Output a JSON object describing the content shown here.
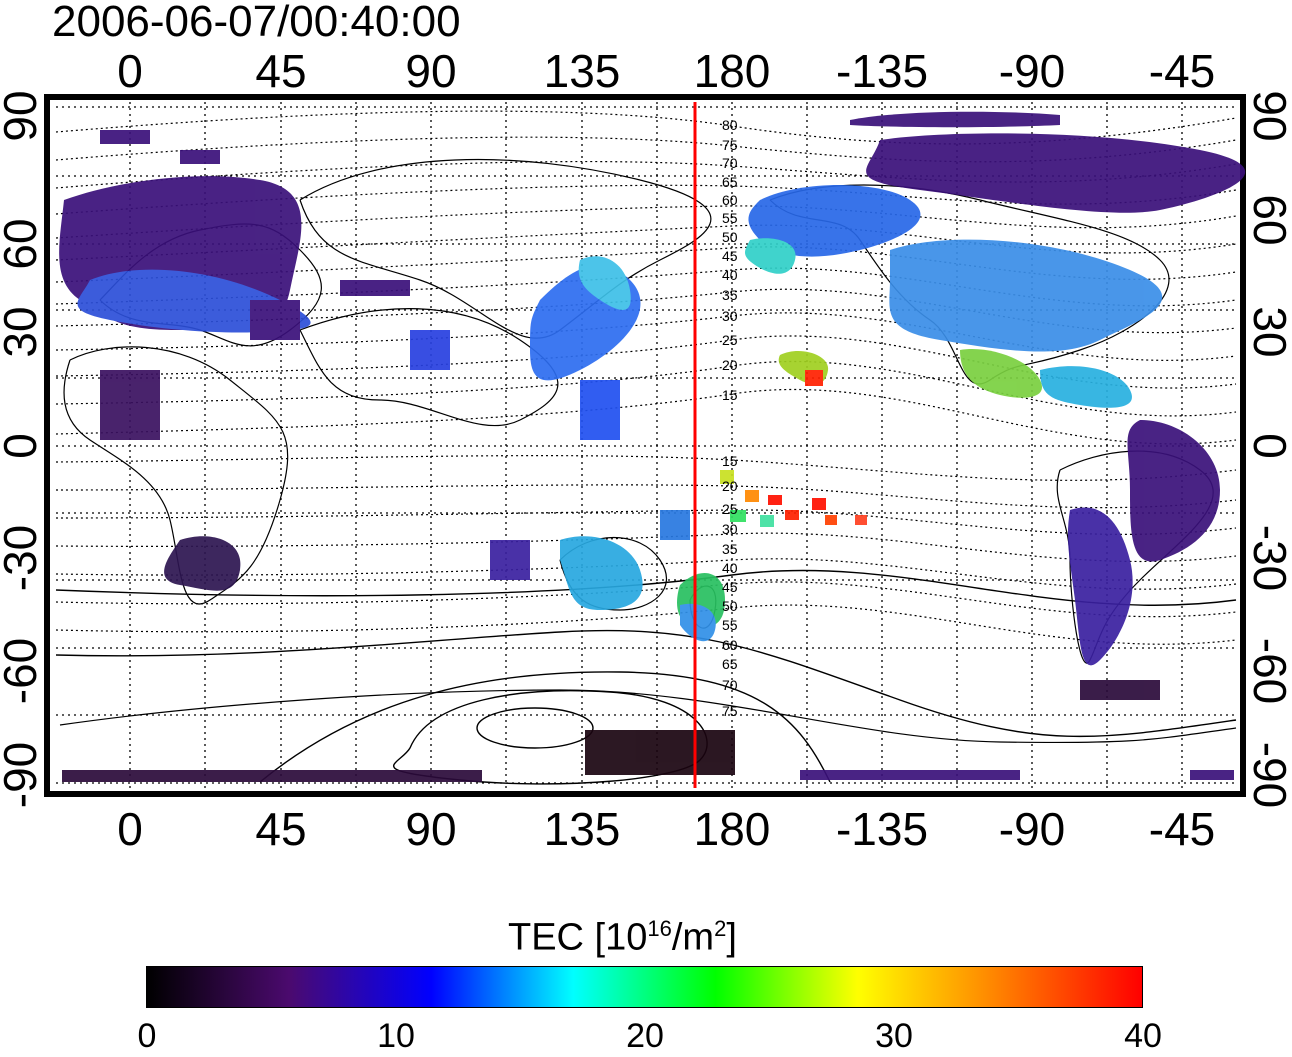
{
  "title": "2006-06-07/00:40:00",
  "top_axis_ticks": [
    "0",
    "45",
    "90",
    "135",
    "180",
    "-135",
    "-90",
    "-45"
  ],
  "bottom_axis_ticks": [
    "0",
    "45",
    "90",
    "135",
    "180",
    "-135",
    "-90",
    "-45"
  ],
  "left_axis_ticks": [
    "90",
    "60",
    "30",
    "0",
    "-30",
    "-60",
    "-90"
  ],
  "right_axis_ticks": [
    "90",
    "60",
    "30",
    "0",
    "-30",
    "-60",
    "-90"
  ],
  "contour_labels": [
    "80",
    "75",
    "70",
    "65",
    "60",
    "55",
    "50",
    "45",
    "40",
    "35",
    "30",
    "25",
    "20",
    "15",
    "15",
    "20",
    "25",
    "30",
    "35",
    "40",
    "45",
    "50",
    "55",
    "60",
    "65",
    "70",
    "75"
  ],
  "colorbar": {
    "label_main": "TEC  [10",
    "label_sup1": "16",
    "label_mid": "/m",
    "label_sup2": "2",
    "label_end": "]",
    "ticks": [
      "0",
      "10",
      "20",
      "30",
      "40"
    ],
    "range": [
      0,
      40
    ],
    "colors": [
      "#000000",
      "#4b0a6e",
      "#0000ff",
      "#00ffff",
      "#00ff00",
      "#ffff00",
      "#ff8000",
      "#ff0000"
    ]
  },
  "map": {
    "lon_range": [
      -23,
      317
    ],
    "lat_range": [
      -92,
      93
    ],
    "terminator_line_color": "#ff0000"
  }
}
